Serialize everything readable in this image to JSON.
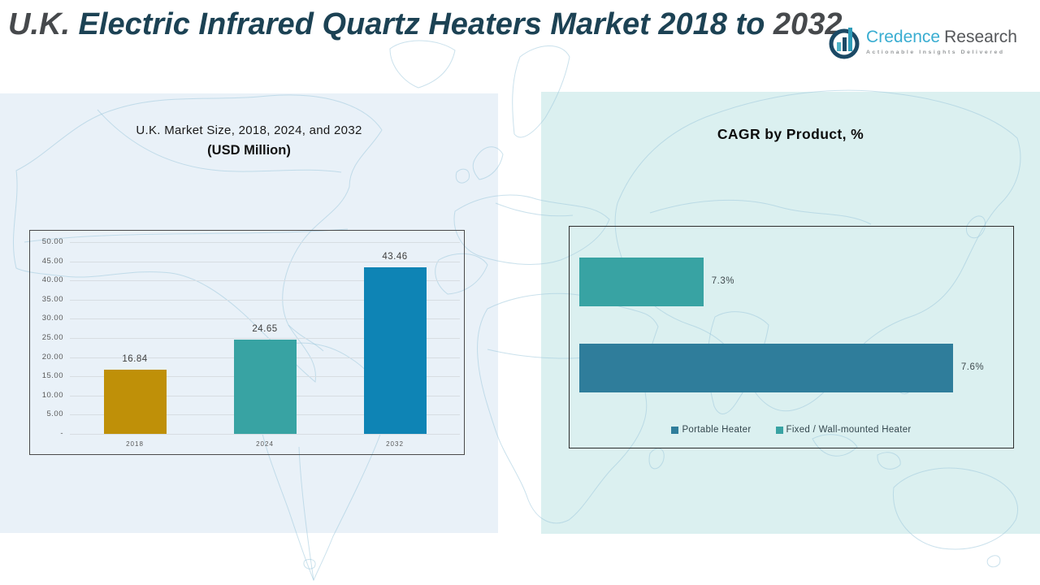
{
  "page": {
    "title": {
      "prefix": "U.K.",
      "middle": " Electric Infrared Quartz Heaters Market 2018 to ",
      "suffix": "2032"
    }
  },
  "logo": {
    "name_primary": "Credence",
    "name_secondary": "Research",
    "tagline": "Actionable Insights Delivered",
    "brand_blue": "#39ADD1",
    "brand_navy": "#1B4965",
    "brand_teal": "#4FB3C6"
  },
  "colors": {
    "panel_left_bg": "#E9F1F8",
    "panel_right_bg": "#DBF0F0",
    "map_stroke": "#9FC8DD",
    "gridline": "#D7DDE2",
    "title_teal": "#1C4254",
    "title_gray": "#46494C"
  },
  "chart_data": [
    {
      "type": "bar",
      "title": "U.K. Market Size, 2018, 2024, and 2032",
      "subtitle": "(USD Million)",
      "categories": [
        "2018",
        "2024",
        "2032"
      ],
      "values": [
        16.84,
        24.65,
        43.46
      ],
      "data_labels": [
        "16.84",
        "24.65",
        "43.46"
      ],
      "colors": [
        "#BF9008",
        "#38A3A3",
        "#0E84B5"
      ],
      "xlabel": "",
      "ylabel": "",
      "ylim": [
        0,
        50
      ],
      "ytick_step": 5,
      "ytick_labels": [
        "50.00",
        "45.00",
        "40.00",
        "35.00",
        "30.00",
        "25.00",
        "20.00",
        "15.00",
        "10.00",
        "5.00",
        "-"
      ],
      "grid": true,
      "legend_position": "none"
    },
    {
      "type": "bar-horizontal",
      "title": "CAGR by Product, %",
      "categories": [
        "Fixed / Wall-mounted Heater",
        "Portable Heater"
      ],
      "values": [
        7.3,
        7.6
      ],
      "data_labels": [
        "7.3%",
        "7.6%"
      ],
      "colors": [
        "#38A3A3",
        "#2F7D9B"
      ],
      "bar_width_pct": [
        28.5,
        85.8
      ],
      "xlabel": "",
      "ylabel": "",
      "grid": false,
      "legend_position": "bottom",
      "legend": [
        {
          "label": "Portable Heater",
          "color": "#2F7D9B"
        },
        {
          "label": "Fixed / Wall-mounted Heater",
          "color": "#38A3A3"
        }
      ]
    }
  ]
}
